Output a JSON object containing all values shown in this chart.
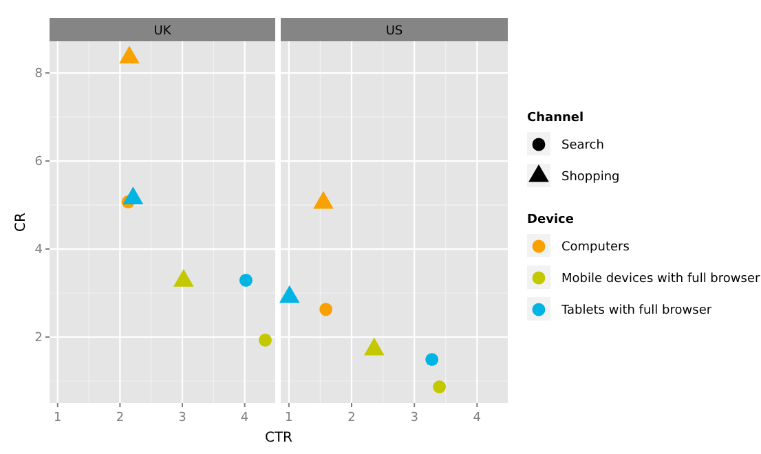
{
  "chart_data": [
    {
      "type": "scatter",
      "title": "UK",
      "xlabel": "CTR",
      "ylabel": "CR",
      "xlim": [
        0.87,
        4.49
      ],
      "ylim": [
        0.5,
        8.72
      ],
      "xticks": [
        1,
        2,
        3,
        4
      ],
      "yticks": [
        2,
        4,
        6,
        8
      ],
      "grid": true,
      "series": [
        {
          "marker": "circle",
          "color": "#f8a100",
          "x": [
            2.13
          ],
          "values": [
            5.07
          ]
        },
        {
          "marker": "circle",
          "color": "#c3c800",
          "x": [
            4.33
          ],
          "values": [
            1.93
          ]
        },
        {
          "marker": "circle",
          "color": "#00b4e4",
          "x": [
            4.02
          ],
          "values": [
            3.29
          ]
        },
        {
          "marker": "triangle",
          "color": "#f8a100",
          "x": [
            2.15
          ],
          "values": [
            8.35
          ]
        },
        {
          "marker": "triangle",
          "color": "#c3c800",
          "x": [
            3.02
          ],
          "values": [
            3.28
          ]
        },
        {
          "marker": "triangle",
          "color": "#00b4e4",
          "x": [
            2.21
          ],
          "values": [
            5.15
          ]
        }
      ]
    },
    {
      "type": "scatter",
      "title": "US",
      "xlim": [
        0.87,
        4.49
      ],
      "ylim": [
        0.5,
        8.72
      ],
      "xticks": [
        1,
        2,
        3,
        4
      ],
      "yticks": [
        2,
        4,
        6,
        8
      ],
      "grid": true,
      "tick_labels": "x",
      "legend": "right",
      "legend_title": "Device",
      "annotations": [
        "Channel",
        "Search",
        "Shopping"
      ],
      "series": [
        {
          "name": "Computers",
          "marker": "circle",
          "color": "#f8a100",
          "x": [
            1.59
          ],
          "values": [
            2.63
          ]
        },
        {
          "name": "Mobile devices with full browser",
          "marker": "circle",
          "color": "#c3c800",
          "x": [
            3.4
          ],
          "values": [
            0.87
          ]
        },
        {
          "name": "Tablets with full browser",
          "marker": "circle",
          "color": "#00b4e4",
          "x": [
            3.28
          ],
          "values": [
            1.49
          ]
        },
        {
          "marker": "triangle",
          "color": "#f8a100",
          "x": [
            1.55
          ],
          "values": [
            5.05
          ]
        },
        {
          "marker": "triangle",
          "color": "#c3c800",
          "x": [
            2.36
          ],
          "values": [
            1.72
          ]
        },
        {
          "marker": "triangle",
          "color": "#00b4e4",
          "x": [
            1.01
          ],
          "values": [
            2.91
          ]
        }
      ]
    }
  ]
}
